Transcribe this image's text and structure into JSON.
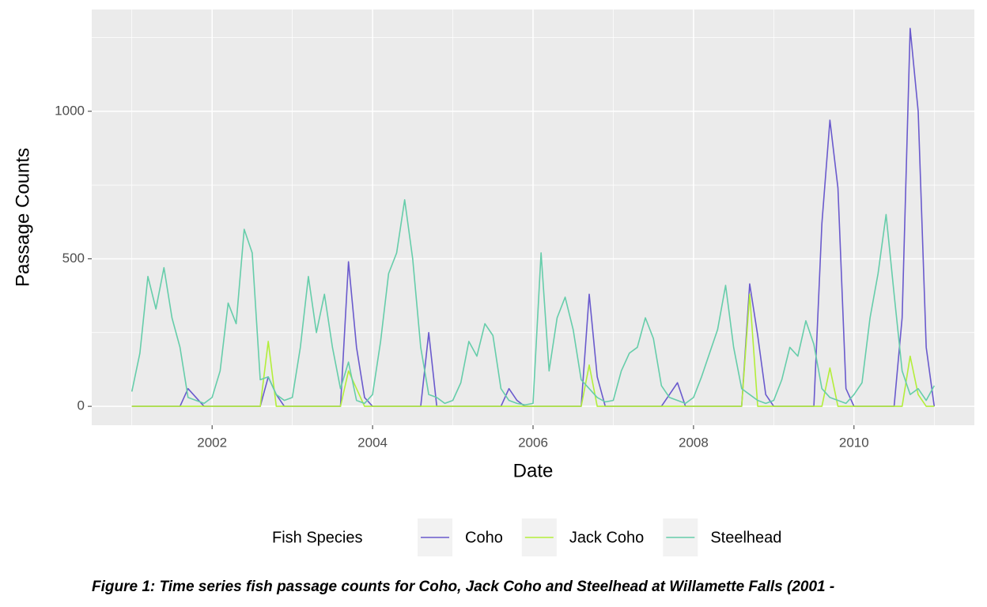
{
  "chart_data": {
    "type": "line",
    "x_label": "Date",
    "y_label": "Passage Counts",
    "legend_title": "Fish Species",
    "caption": "Figure 1: Time series fish passage counts for Coho, Jack Coho and Steelhead at Willamette Falls (2001 -",
    "xlim": [
      2000.5,
      2011.5
    ],
    "xticks": [
      2002,
      2004,
      2006,
      2008,
      2010
    ],
    "x_minor_ticks": [
      2001,
      2003,
      2005,
      2007,
      2009,
      2011
    ],
    "ylim": [
      -64,
      1345
    ],
    "yticks": [
      0,
      500,
      1000
    ],
    "y_minor_ticks": [
      250,
      750,
      1250
    ],
    "grid": true,
    "legend_position": "bottom",
    "x": [
      2001.0,
      2001.1,
      2001.2,
      2001.3,
      2001.4,
      2001.5,
      2001.6,
      2001.7,
      2001.8,
      2001.9,
      2002.0,
      2002.1,
      2002.2,
      2002.3,
      2002.4,
      2002.5,
      2002.6,
      2002.7,
      2002.8,
      2002.9,
      2003.0,
      2003.1,
      2003.2,
      2003.3,
      2003.4,
      2003.5,
      2003.6,
      2003.7,
      2003.8,
      2003.9,
      2004.0,
      2004.1,
      2004.2,
      2004.3,
      2004.4,
      2004.5,
      2004.6,
      2004.7,
      2004.8,
      2004.9,
      2005.0,
      2005.1,
      2005.2,
      2005.3,
      2005.4,
      2005.5,
      2005.6,
      2005.7,
      2005.8,
      2005.9,
      2006.0,
      2006.1,
      2006.2,
      2006.3,
      2006.4,
      2006.5,
      2006.6,
      2006.7,
      2006.8,
      2006.9,
      2007.0,
      2007.1,
      2007.2,
      2007.3,
      2007.4,
      2007.5,
      2007.6,
      2007.7,
      2007.8,
      2007.9,
      2008.0,
      2008.1,
      2008.2,
      2008.3,
      2008.4,
      2008.5,
      2008.6,
      2008.7,
      2008.8,
      2008.9,
      2009.0,
      2009.1,
      2009.2,
      2009.3,
      2009.4,
      2009.5,
      2009.6,
      2009.7,
      2009.8,
      2009.9,
      2010.0,
      2010.1,
      2010.2,
      2010.3,
      2010.4,
      2010.5,
      2010.6,
      2010.7,
      2010.8,
      2010.9,
      2011.0
    ],
    "series": [
      {
        "name": "Coho",
        "color": "#6a5acd",
        "values": [
          0,
          0,
          0,
          0,
          0,
          0,
          0,
          60,
          30,
          0,
          0,
          0,
          0,
          0,
          0,
          0,
          0,
          100,
          40,
          0,
          0,
          0,
          0,
          0,
          0,
          0,
          0,
          490,
          200,
          30,
          0,
          0,
          0,
          0,
          0,
          0,
          0,
          250,
          0,
          0,
          0,
          0,
          0,
          0,
          0,
          0,
          0,
          60,
          20,
          0,
          0,
          0,
          0,
          0,
          0,
          0,
          0,
          380,
          100,
          0,
          0,
          0,
          0,
          0,
          0,
          0,
          0,
          40,
          80,
          0,
          0,
          0,
          0,
          0,
          0,
          0,
          0,
          415,
          240,
          40,
          0,
          0,
          0,
          0,
          0,
          0,
          620,
          970,
          740,
          60,
          0,
          0,
          0,
          0,
          0,
          0,
          300,
          1281,
          1000,
          200,
          0
        ]
      },
      {
        "name": "Jack Coho",
        "color": "#b3ee3a",
        "values": [
          0,
          0,
          0,
          0,
          0,
          0,
          0,
          0,
          0,
          0,
          0,
          0,
          0,
          0,
          0,
          0,
          0,
          220,
          0,
          0,
          0,
          0,
          0,
          0,
          0,
          0,
          0,
          120,
          60,
          0,
          0,
          0,
          0,
          0,
          0,
          0,
          0,
          0,
          0,
          0,
          0,
          0,
          0,
          0,
          0,
          0,
          0,
          0,
          0,
          0,
          0,
          0,
          0,
          0,
          0,
          0,
          0,
          140,
          0,
          0,
          0,
          0,
          0,
          0,
          0,
          0,
          0,
          0,
          0,
          0,
          0,
          0,
          0,
          0,
          0,
          0,
          0,
          380,
          0,
          0,
          0,
          0,
          0,
          0,
          0,
          0,
          0,
          130,
          0,
          0,
          0,
          0,
          0,
          0,
          0,
          0,
          0,
          170,
          40,
          0,
          0
        ]
      },
      {
        "name": "Steelhead",
        "color": "#66cdaa",
        "values": [
          50,
          180,
          440,
          330,
          470,
          300,
          200,
          30,
          20,
          10,
          30,
          120,
          350,
          280,
          600,
          520,
          90,
          100,
          40,
          20,
          30,
          200,
          440,
          250,
          380,
          200,
          60,
          150,
          20,
          10,
          40,
          220,
          450,
          520,
          700,
          500,
          200,
          40,
          30,
          10,
          20,
          80,
          220,
          170,
          280,
          240,
          60,
          20,
          10,
          5,
          10,
          520,
          120,
          300,
          370,
          260,
          90,
          60,
          30,
          15,
          20,
          120,
          180,
          200,
          300,
          230,
          70,
          30,
          20,
          10,
          30,
          100,
          180,
          260,
          410,
          200,
          60,
          40,
          20,
          10,
          20,
          90,
          200,
          170,
          290,
          210,
          60,
          30,
          20,
          10,
          40,
          80,
          300,
          450,
          650,
          380,
          120,
          40,
          60,
          20,
          70
        ]
      }
    ]
  }
}
